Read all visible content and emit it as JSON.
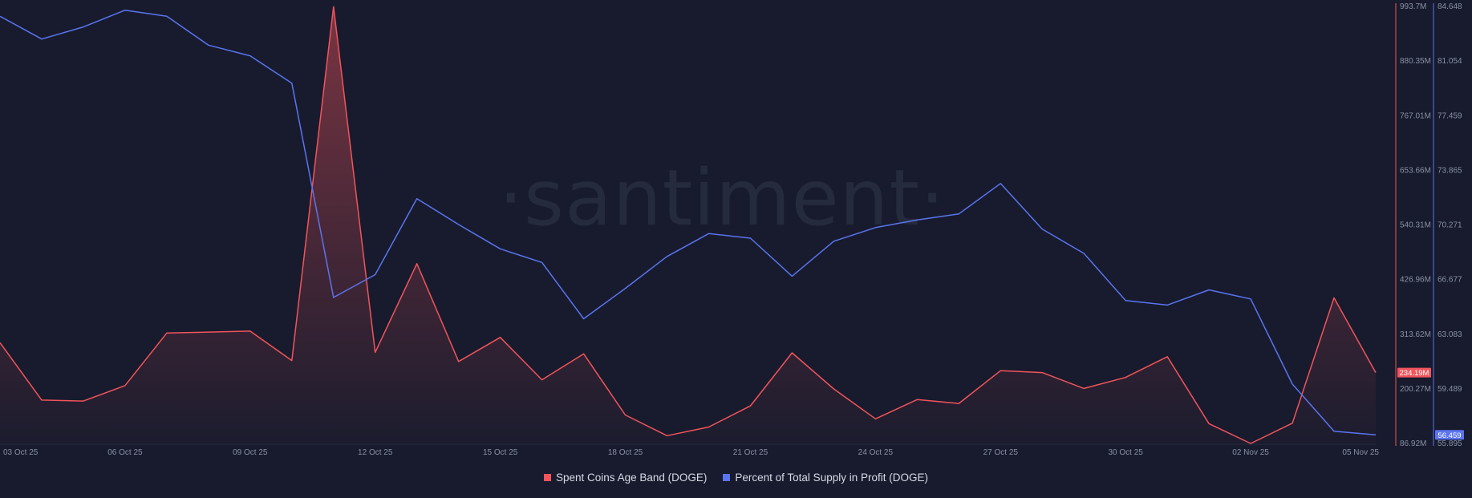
{
  "watermark": "·santiment·",
  "chart_data": {
    "type": "line",
    "x": [
      "03 Oct 25",
      "04 Oct 25",
      "05 Oct 25",
      "06 Oct 25",
      "07 Oct 25",
      "08 Oct 25",
      "09 Oct 25",
      "10 Oct 25",
      "11 Oct 25",
      "12 Oct 25",
      "13 Oct 25",
      "14 Oct 25",
      "15 Oct 25",
      "16 Oct 25",
      "17 Oct 25",
      "18 Oct 25",
      "19 Oct 25",
      "20 Oct 25",
      "21 Oct 25",
      "22 Oct 25",
      "23 Oct 25",
      "24 Oct 25",
      "25 Oct 25",
      "26 Oct 25",
      "27 Oct 25",
      "28 Oct 25",
      "29 Oct 25",
      "30 Oct 25",
      "31 Oct 25",
      "01 Nov 25",
      "02 Nov 25",
      "03 Nov 25",
      "04 Nov 25",
      "05 Nov 25"
    ],
    "x_ticks": [
      "03 Oct 25",
      "06 Oct 25",
      "09 Oct 25",
      "12 Oct 25",
      "15 Oct 25",
      "18 Oct 25",
      "21 Oct 25",
      "24 Oct 25",
      "27 Oct 25",
      "30 Oct 25",
      "02 Nov 25",
      "05 Nov 25"
    ],
    "series": [
      {
        "name": "Spent Coins Age Band (DOGE)",
        "color": "#f2545b",
        "axis": "left",
        "values": [
          296,
          177,
          175,
          207,
          316,
          318,
          320,
          259,
          993,
          276,
          460,
          257,
          307,
          219,
          273,
          146,
          103,
          121,
          165,
          275,
          200,
          138,
          178,
          170,
          238,
          234,
          201,
          224,
          267,
          128,
          87,
          129,
          389,
          234
        ]
      },
      {
        "name": "Percent of Total Supply in Profit (DOGE)",
        "color": "#5b74f0",
        "axis": "right",
        "values": [
          84.0,
          82.5,
          83.3,
          84.4,
          84.0,
          82.1,
          81.4,
          79.6,
          65.5,
          67.0,
          72.0,
          70.3,
          68.7,
          67.8,
          64.1,
          66.1,
          68.2,
          69.7,
          69.4,
          66.9,
          69.2,
          70.1,
          70.6,
          71.0,
          73.0,
          70.0,
          68.4,
          65.3,
          65.0,
          66.0,
          65.4,
          59.8,
          56.7,
          56.459
        ]
      }
    ],
    "y_left": {
      "ticks": [
        "993.7M",
        "880.35M",
        "767.01M",
        "653.66M",
        "540.31M",
        "426.96M",
        "313.62M",
        "200.27M",
        "86.92M"
      ],
      "range": [
        86.92,
        993.7
      ],
      "last_value_label": "234.19M"
    },
    "y_right": {
      "ticks": [
        "84.648",
        "81.054",
        "77.459",
        "73.865",
        "70.271",
        "66.677",
        "63.083",
        "59.489",
        "55.895"
      ],
      "range": [
        55.895,
        84.648
      ],
      "last_value_label": "56.459"
    },
    "grid": false,
    "legend_position": "bottom-center"
  },
  "legend": [
    {
      "label": "Spent Coins Age Band (DOGE)",
      "color": "#f2545b"
    },
    {
      "label": "Percent of Total Supply in Profit (DOGE)",
      "color": "#5b74f0"
    }
  ]
}
